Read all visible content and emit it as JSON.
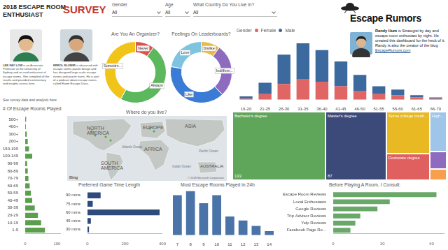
{
  "header": {
    "title_lines": [
      "2018 ESCAPE ROOM",
      "ENTHUSIAST",
      "SURVEY"
    ]
  },
  "filters": [
    {
      "label": "Gender",
      "value": "All"
    },
    {
      "label": "Age",
      "value": "All"
    },
    {
      "label": "What Country Do You Live In?",
      "value": "All"
    }
  ],
  "brand": {
    "name": "Escape Rumors"
  },
  "author": {
    "name": "Randy Hum",
    "text": "is Strategist by day and escape room enthusiast by night. He created this dashboard for the heck of it. Randy is also the creator of the blog",
    "link": "EscapeRumors.com"
  },
  "bios": [
    {
      "name": "LEE-FAY LOW",
      "text": "is an Associate Professor at the University of Sydney and an avid enthusiast of escape rooms. She compiled all the results and provided commentary and insights across here."
    },
    {
      "name": "ERROL ELUMIR",
      "text": "is obsessed with escape rooms puzzle design and has designed large-scale escape events and puzzle hunts. He is part of a podcast about escape rooms called Room Escape Divas."
    }
  ],
  "bios_note": "See survey data and analysis here",
  "map": {
    "title": "Where do you live?",
    "labels": [
      "NORTH AMERICA",
      "EUROPE",
      "ASIA",
      "AFRICA",
      "SOUTH AMERICA",
      "AUSTRALIA",
      "Atlantic Ocean",
      "Pacific Ocean",
      "Indian Ocean"
    ],
    "credits": [
      "Bing",
      "© 2018 Microsoft Corporation"
    ]
  },
  "chart_data": [
    {
      "type": "doughnut",
      "title": "Are You An Organizer?",
      "categories": [
        "Never",
        "Always",
        "Sometim..."
      ],
      "values": [
        10,
        48,
        42
      ],
      "colors": [
        "#d9534f",
        "#5cb85c",
        "#f0c419"
      ]
    },
    {
      "type": "doughnut",
      "title": "Feelings On Leaderboards?",
      "categories": [
        "Dislike",
        "Indiffere...",
        "Like",
        "Love"
      ],
      "values": [
        10,
        28,
        40,
        22
      ],
      "colors": [
        "#e9b949",
        "#8e6bbf",
        "#3a7bd5",
        "#7dc4e0"
      ]
    },
    {
      "type": "bar",
      "legend_title": "Gender",
      "categories": [
        "16-20",
        "21-25",
        "26-30",
        "31-35",
        "36-40",
        "41-45",
        "46-50",
        "51-55",
        "56-60",
        "61-65",
        "66-70"
      ],
      "series": [
        {
          "name": "Female",
          "color": "#e06666",
          "values": [
            1,
            5,
            14,
            18,
            16,
            12,
            8,
            5,
            4,
            2,
            1
          ]
        },
        {
          "name": "Male",
          "color": "#3d6a9e",
          "values": [
            2,
            10,
            26,
            32,
            28,
            22,
            14,
            7,
            5,
            2,
            1
          ]
        }
      ],
      "stacked": true,
      "ylim": [
        0,
        55
      ],
      "legend": "top left",
      "tick_labels": "x"
    },
    {
      "type": "bar",
      "title": "# Of Escape Rooms Played",
      "orientation": "horizontal",
      "categories": [
        "500+",
        "400+",
        "300+",
        "200+",
        "150-199",
        "100-149",
        "90-99",
        "80-89",
        "70-79",
        "60-69",
        "50-59",
        "40-49",
        "30-39",
        "20-29",
        "10-19",
        "1-9"
      ],
      "values": [
        3,
        2,
        5,
        8,
        12,
        22,
        6,
        8,
        10,
        14,
        18,
        22,
        30,
        40,
        50,
        62
      ],
      "color": "#5b9e4d",
      "xlim": [
        0,
        110
      ],
      "xticks": [
        0,
        100
      ]
    },
    {
      "type": "bar",
      "title": "Preferred Game Time Length",
      "orientation": "horizontal",
      "categories": [
        "90 mins",
        "75 mins",
        "60 mins",
        "45 mins",
        "30 mins"
      ],
      "values": [
        70,
        28,
        385,
        18,
        8
      ],
      "color": "#2f4b7c",
      "xlim": [
        0,
        400
      ],
      "xticks": [
        0,
        200,
        400
      ]
    },
    {
      "type": "bar",
      "title": "Most Escape Rooms Played in 24h",
      "x": [
        7,
        8,
        9,
        10,
        11,
        12,
        13,
        14
      ],
      "values": [
        30,
        33,
        24,
        30,
        14,
        11,
        7,
        3
      ],
      "color": "#4a74a8",
      "ylim": [
        0,
        35
      ],
      "tick_labels": "x"
    },
    {
      "type": "bar",
      "title": "Before Playing A Room, I Consult:",
      "orientation": "horizontal",
      "categories": [
        "Escape Room Reviews",
        "Local Enthusiasts",
        "Google Reviews",
        "Trip Advisor Reviews",
        "Yelp Reviews",
        "Facebook Page Re..."
      ],
      "values": [
        42,
        23,
        18,
        11,
        9,
        7
      ],
      "color": "#6aa86a",
      "xlim": [
        0,
        45
      ],
      "xticks": [
        0,
        20,
        40
      ]
    },
    {
      "type": "treemap",
      "categories": [
        "Bachelor's degree",
        "Master's degree",
        "Some college credit...",
        "Doctorate degree",
        "High...",
        null,
        null
      ],
      "values": [
        133,
        87,
        38,
        24,
        14,
        6,
        4
      ],
      "value_labels": [
        "133",
        "87",
        null,
        null,
        null,
        null,
        null
      ],
      "colors": [
        "#5fa55a",
        "#3c4a7a",
        "#e8b923",
        "#e06060",
        "#9fc5e8",
        "#8e6bbf",
        "#f6a04d"
      ]
    }
  ]
}
